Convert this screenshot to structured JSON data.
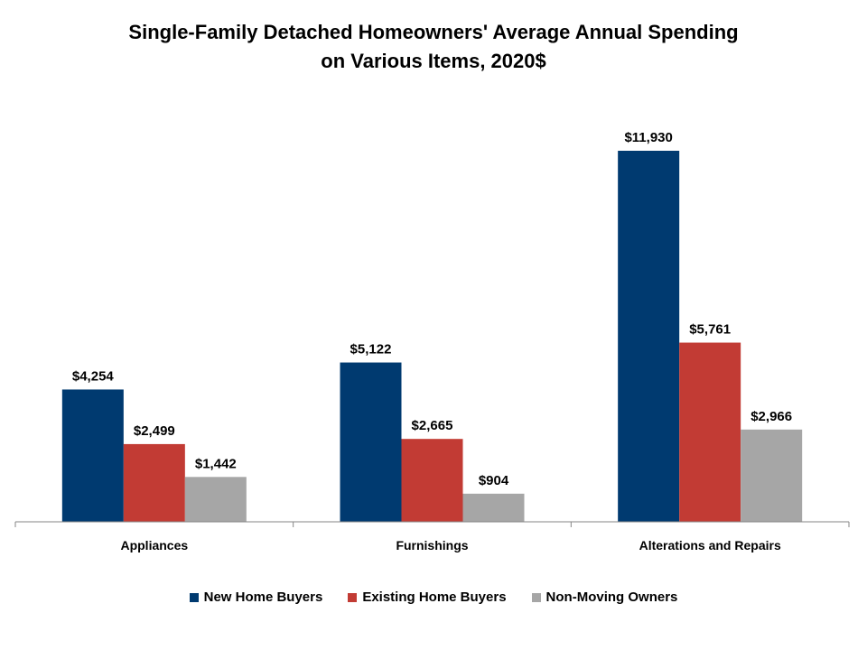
{
  "chart_data": {
    "type": "bar",
    "title_line1": "Single-Family Detached Homeowners' Average Annual Spending",
    "title_line2": "on Various Items, 2020$",
    "xlabel": "",
    "ylabel": "",
    "categories": [
      "Appliances",
      "Furnishings",
      "Alterations and Repairs"
    ],
    "series": [
      {
        "name": "New Home Buyers",
        "color": "#003a70",
        "values": [
          4254,
          5122,
          11930
        ],
        "labels": [
          "$4,254",
          "$5,122",
          "$11,930"
        ]
      },
      {
        "name": "Existing Home Buyers",
        "color": "#c23b34",
        "values": [
          2499,
          2665,
          5761
        ],
        "labels": [
          "$2,499",
          "$2,665",
          "$5,761"
        ]
      },
      {
        "name": "Non-Moving Owners",
        "color": "#a6a6a6",
        "values": [
          1442,
          904,
          2966
        ],
        "labels": [
          "$1,442",
          "$904",
          "$2,966"
        ]
      }
    ],
    "ylim": [
      0,
      14000
    ],
    "grid": false,
    "legend_position": "bottom"
  }
}
